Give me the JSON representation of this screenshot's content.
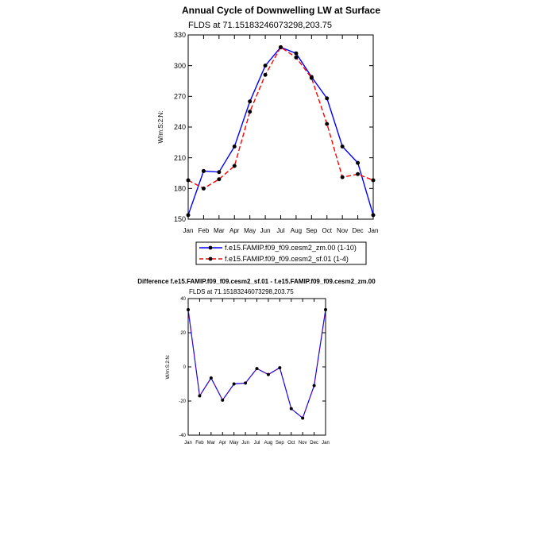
{
  "chart_data": [
    {
      "type": "line",
      "title": "Annual Cycle of Downwelling LW at Surface",
      "subtitle": "FLDS at 71.15183246073298,203.75",
      "ylabel": "W/m:S:2:N:",
      "xlabel": "",
      "categories": [
        "Jan",
        "Feb",
        "Mar",
        "Apr",
        "May",
        "Jun",
        "Jul",
        "Aug",
        "Sep",
        "Oct",
        "Nov",
        "Dec",
        "Jan"
      ],
      "ylim": [
        150,
        330
      ],
      "yticks": [
        150,
        180,
        210,
        240,
        270,
        300,
        330
      ],
      "series": [
        {
          "name": "f.e15.FAMIP.f09_f09.cesm2_zm.00 (1-10)",
          "color": "#0000ff",
          "dash": "solid",
          "values": [
            154,
            197,
            196,
            221,
            265,
            300,
            318,
            312,
            289,
            268,
            221,
            205,
            154
          ]
        },
        {
          "name": "f.e15.FAMIP.f09_f09.cesm2_sf.01 (1-4)",
          "color": "#ff0000",
          "dash": "dashed",
          "values": [
            188,
            180,
            189,
            202,
            255,
            291,
            318,
            308,
            288,
            243,
            191,
            194,
            188
          ]
        }
      ],
      "legend_position": "below"
    },
    {
      "type": "line",
      "title": "Difference f.e15.FAMIP.f09_f09.cesm2_sf.01 - f.e15.FAMIP.f09_f09.cesm2_zm.00",
      "subtitle": "FLDS at 71.15183246073298,203.75",
      "ylabel": "W/m:S:2:N:",
      "xlabel": "",
      "categories": [
        "Jan",
        "Feb",
        "Mar",
        "Apr",
        "May",
        "Jun",
        "Jul",
        "Aug",
        "Sep",
        "Oct",
        "Nov",
        "Dec",
        "Jan"
      ],
      "ylim": [
        -40,
        40
      ],
      "yticks": [
        -40,
        -20,
        0,
        20,
        40
      ],
      "series": [
        {
          "color": "#0000ff",
          "overlay_color": "#ff0000",
          "values": [
            33.5,
            -17,
            -6.5,
            -19.5,
            -10,
            -9.5,
            -1,
            -4.5,
            -0.5,
            -24.5,
            -30,
            -11,
            33.5
          ]
        }
      ]
    }
  ]
}
